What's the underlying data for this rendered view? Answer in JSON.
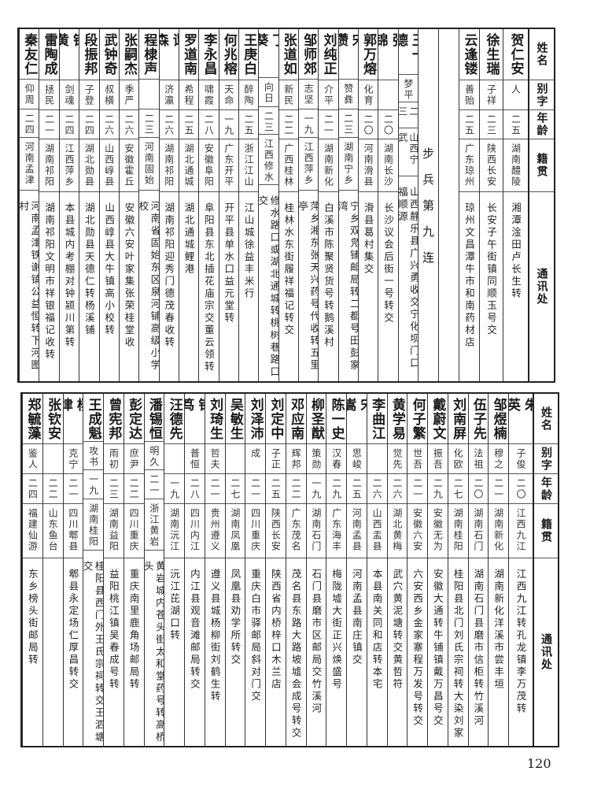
{
  "headers": {
    "name": "姓名",
    "alias": "别字",
    "age": "年龄",
    "origin": "籍贯",
    "address": "通讯处"
  },
  "top_table": {
    "columns_right_to_left": [
      {
        "name": "贺仁安",
        "alias": "人",
        "age": "二五",
        "origin": "湖南醴陵",
        "address": "湘潭淦田卢长生转"
      },
      {
        "name": "徐生瑞",
        "alias": "子祥",
        "age": "二三",
        "origin": "陕西长安",
        "address": "长安子午街镇同顺玉号交"
      },
      {
        "name": "云逢镂",
        "alias": "善贻",
        "age": "二五",
        "origin": "广东琼州",
        "address": "琼州文昌潭牛市和南药材店"
      },
      {
        "blank": true
      },
      {
        "section": "步兵第九连"
      },
      {
        "name": "王一德",
        "alias": "梦平",
        "age": "二三",
        "origin": "山西宁武",
        "address": "山西静乐县广兴勇收交宁化坝门口福顺源"
      },
      {
        "name": "张锦",
        "alias": "",
        "age": "二〇",
        "origin": "湖南长沙",
        "address": "长沙议会后街一号转交"
      },
      {
        "name": "郭万熔",
        "alias": "化育",
        "age": "二〇",
        "origin": "河南滑县",
        "address": "滑县葛村集交"
      },
      {
        "name": "宋瓒",
        "alias": "赞彝",
        "age": "二三",
        "origin": "湖南宁乡",
        "address": "宁乡双凫铺邮局转二都号田彭家湾"
      },
      {
        "name": "刘纯正",
        "alias": "介平",
        "age": "二一",
        "origin": "湖南新化",
        "address": "白溪市陈聚贤货号转鹅溪村"
      },
      {
        "name": "邹师郊",
        "alias": "志坚",
        "age": "一九",
        "origin": "江西萍乡",
        "address": "萍乡湘东张天兴药号代收转五里亭"
      },
      {
        "name": "张道如",
        "alias": "新民",
        "age": "二二",
        "origin": "广西桂林",
        "address": "桂林水东街履祥福记转交"
      },
      {
        "name": "丁葵",
        "alias": "向日",
        "age": "二三",
        "origin": "江西修水",
        "address": "修水路口或湖北通城转桃树巷路口交"
      },
      {
        "name": "王庚白",
        "alias": "醉陶",
        "age": "二五",
        "origin": "浙江江山",
        "address": "江山城徐益丰米行"
      },
      {
        "name": "何兆榕",
        "alias": "天命",
        "age": "一九",
        "origin": "广东开平",
        "address": "开平县单水口益元堂转"
      },
      {
        "name": "李永昌",
        "alias": "啸霞",
        "age": "二八",
        "origin": "安徽阜阳",
        "address": "阜阳县东北插花庙宗交董云领转"
      },
      {
        "name": "罗道南",
        "alias": "希程",
        "age": "二五",
        "origin": "湖北通城",
        "address": "湖北通城鲤港"
      },
      {
        "name": "谭森",
        "alias": "济瀛",
        "age": "二六",
        "origin": "湖南祁阳",
        "address": "湖南祁阳迎秀门德茂春收转"
      },
      {
        "name": "程棣声",
        "alias": "",
        "age": "二三",
        "origin": "河南固始",
        "address": "河南省固始东区泉河铺高级小学校"
      },
      {
        "name": "张嗣杰",
        "alias": "季严",
        "age": "二六",
        "origin": "安徽霍丘",
        "address": "安徽六安叶家集张荣桂堂收"
      },
      {
        "name": "武钟奇",
        "alias": "叔横",
        "age": "二六",
        "origin": "山西崞县",
        "address": "山西崞县大牛镇高小校转"
      },
      {
        "name": "段振邦",
        "alias": "子登",
        "age": "二四",
        "origin": "湖北勋县",
        "address": "湖北勋县天德仁转杨溪铺"
      },
      {
        "name": "钟黄",
        "alias": "剑魂",
        "age": "二四",
        "origin": "江西萍乡",
        "address": "本县城内考棚对钟颍川第转"
      },
      {
        "name": "雷陶成",
        "alias": "拯民",
        "age": "二一",
        "origin": "湖南祁阳",
        "address": "湖南祁阳文明市祥银福记收转"
      },
      {
        "name": "秦友仁",
        "alias": "仰周",
        "age": "二四",
        "origin": "河南孟津",
        "address": "河南孟津铁谢镇公益恒转下河图村"
      }
    ]
  },
  "bottom_table": {
    "columns_right_to_left": [
      {
        "name": "朱英",
        "alias": "子俊",
        "age": "二〇",
        "origin": "江西九江",
        "address": "江西九江转孔龙镇李万茂转"
      },
      {
        "name": "邹煜楠",
        "alias": "穆之",
        "age": "二一",
        "origin": "湖南新化",
        "address": "湖南新化洋溪市尝丰垣"
      },
      {
        "name": "伍子先",
        "alias": "法祖",
        "age": "二〇",
        "origin": "湖南石门",
        "address": "湖南石门县磨市信柜转竹溪河"
      },
      {
        "name": "刘南屏",
        "alias": "化欧",
        "age": "二七",
        "origin": "湖南桂阳",
        "address": "桂阳县北门刘氏宗祠转大染刘家"
      },
      {
        "name": "戴蔚文",
        "alias": "振吾",
        "age": "二九",
        "origin": "安徽无为",
        "address": "安徽大通转牛铺镇戴万昌号交"
      },
      {
        "name": "何子繁",
        "alias": "世吾",
        "age": "二一",
        "origin": "安徽六安",
        "address": "六安西乡金家寨程万发号转交"
      },
      {
        "name": "黄学易",
        "alias": "觉先",
        "age": "二六",
        "origin": "湖北黄梅",
        "address": "武穴黄泥塘转交黄哲符"
      },
      {
        "name": "李曲江",
        "alias": "",
        "age": "二六",
        "origin": "山西盂县",
        "address": "本县南关同和店转本宅"
      },
      {
        "name": "宋嵩",
        "alias": "思峻",
        "age": "二五",
        "origin": "河南孟县",
        "address": "河南孟县南庄镇交"
      },
      {
        "name": "陈一史",
        "alias": "汉春",
        "age": "二九",
        "origin": "广东海丰",
        "address": "梅陇墟大街正兴焕盛号"
      },
      {
        "name": "柳圣猷",
        "alias": "策勋",
        "age": "一九",
        "origin": "湖南石门",
        "address": "石门县磨市区邮局交竹溪河"
      },
      {
        "name": "邓应南",
        "alias": "辉邦",
        "age": "二二",
        "origin": "广东茂名",
        "address": "茂名县东路大路坡墟会成号转交"
      },
      {
        "name": "刘定中",
        "alias": "子正",
        "age": "二五",
        "origin": "陕西长安",
        "address": "陕西省内桥梓口木兰店"
      },
      {
        "name": "刘泽沛",
        "alias": "成",
        "age": "二一",
        "origin": "四川重庆",
        "address": "重庆白市驿邮局斜对门交"
      },
      {
        "name": "吴敏生",
        "alias": "",
        "age": "二七",
        "origin": "湖南凤凰",
        "address": "凤凰县劝学所转交"
      },
      {
        "name": "刘琦生",
        "alias": "哲夫",
        "age": "二一",
        "origin": "贵州遵义",
        "address": "遵义县城杨柳街刘鹤生转"
      },
      {
        "name": "钟笃",
        "alias": "普恒",
        "age": "二八",
        "origin": "四川内江",
        "address": "内江县观音滩邮局转交"
      },
      {
        "name": "汪德先",
        "alias": "",
        "age": "一九",
        "origin": "湖南沅江",
        "address": "沅江芘湖口转"
      },
      {
        "name": "潘锡恒",
        "alias": "明久",
        "age": "二一",
        "origin": "浙江黄岩",
        "address": "黄岩城内苍头街太和堂药号转高桥头"
      },
      {
        "name": "彭定达",
        "alias": "庶尹",
        "age": "二二",
        "origin": "四川重庆",
        "address": "重庆南里鹿角场邮局转"
      },
      {
        "name": "曾宪邦",
        "alias": "雨初",
        "age": "二三",
        "origin": "湖南益阳",
        "address": "益阳桃江镇吴春成号转"
      },
      {
        "name": "王成魁",
        "alias": "攻书",
        "age": "一九",
        "origin": "湖南桂阳",
        "address": "桂阳县西门外王氏宗祠转交王泗塘交"
      },
      {
        "name": "杨律",
        "alias": "克宁",
        "age": "二一",
        "origin": "四川郫县",
        "address": "郫县永定场仁厚昌转交"
      },
      {
        "name": "张钦安",
        "alias": "",
        "age": "二二",
        "origin": "山东鱼台",
        "address": ""
      },
      {
        "name": "郑毓藻",
        "alias": "鉴人",
        "age": "二四",
        "origin": "福建仙游",
        "address": "东乡榜头街邮局转"
      }
    ]
  },
  "page_number": "120"
}
